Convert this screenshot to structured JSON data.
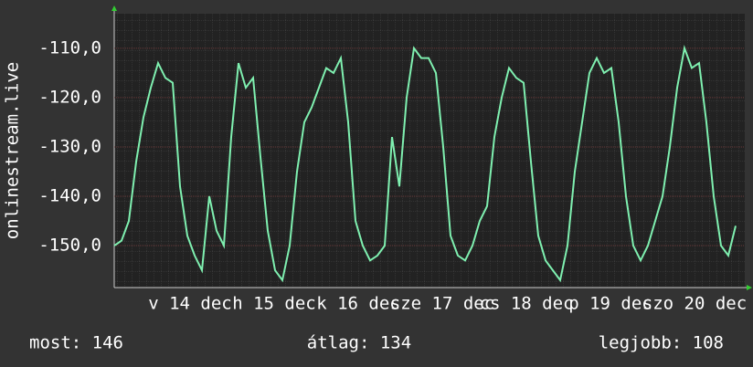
{
  "chart_data": {
    "type": "line",
    "y_label": "onlinestream.live",
    "ylim": [
      -158.5,
      -103
    ],
    "yticks": [
      {
        "value": -110,
        "label": "-110,0"
      },
      {
        "value": -120,
        "label": "-120,0"
      },
      {
        "value": -130,
        "label": "-130,0"
      },
      {
        "value": -140,
        "label": "-140,0"
      },
      {
        "value": -150,
        "label": "-150,0"
      }
    ],
    "x_labels": [
      "v 14 dec",
      "h 15 dec",
      "k 16 dec",
      "sze 17 dec",
      "cs 18 dec",
      "p 19 dec",
      "szo 20 dec"
    ],
    "grid": true,
    "series": [
      {
        "color": "#7ff0b0",
        "values": [
          -150,
          -149,
          -145,
          -133,
          -124,
          -118,
          -113,
          -116,
          -117,
          -138,
          -148,
          -152,
          -155,
          -140,
          -147,
          -150,
          -128,
          -113,
          -118,
          -116,
          -132,
          -147,
          -155,
          -157,
          -150,
          -135,
          -125,
          -122,
          -118,
          -114,
          -115,
          -112,
          -125,
          -145,
          -150,
          -153,
          -152,
          -150,
          -128,
          -138,
          -120,
          -110,
          -112,
          -112,
          -115,
          -130,
          -148,
          -152,
          -153,
          -150,
          -145,
          -142,
          -128,
          -120,
          -114,
          -116,
          -117,
          -133,
          -148,
          -153,
          -155,
          -157,
          -150,
          -135,
          -125,
          -115,
          -112,
          -115,
          -114,
          -125,
          -140,
          -150,
          -153,
          -150,
          -145,
          -140,
          -130,
          -118,
          -110,
          -114,
          -113,
          -125,
          -140,
          -150,
          -152,
          -146
        ]
      }
    ],
    "stats": [
      "most: 146",
      "átlag: 134",
      "legjobb: 108"
    ]
  }
}
